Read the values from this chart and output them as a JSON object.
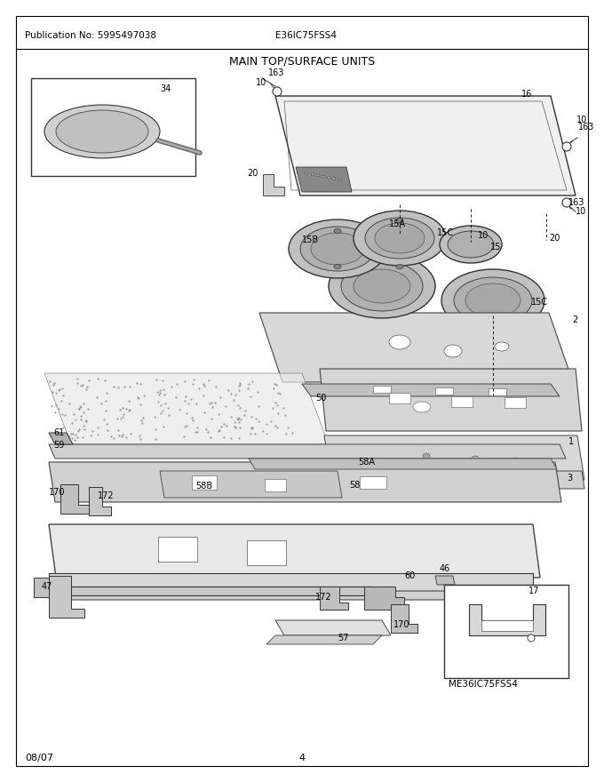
{
  "title": "MAIN TOP/SURFACE UNITS",
  "pub_no": "Publication No: 5995497038",
  "model": "E36IC75FSS4",
  "date": "08/07",
  "page": "4",
  "sub_model": "ME36IC75FSS4",
  "bg_color": "#ffffff",
  "fig_width": 6.8,
  "fig_height": 8.8,
  "dpi": 100
}
